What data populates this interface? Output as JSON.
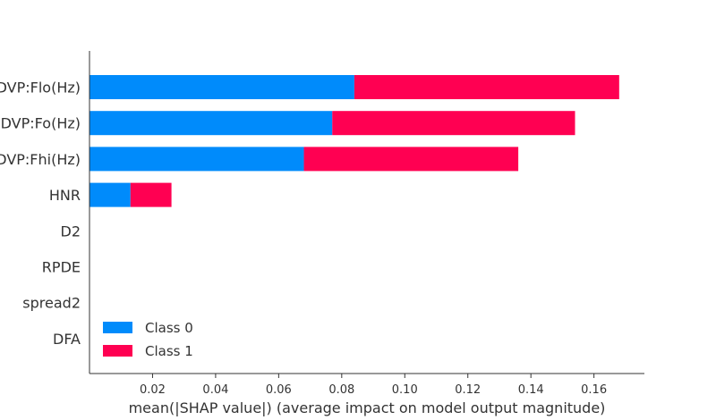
{
  "chart_data": {
    "type": "bar",
    "orientation": "horizontal",
    "stacked": true,
    "categories": [
      "MDVP:Flo(Hz)",
      "MDVP:Fo(Hz)",
      "MDVP:Fhi(Hz)",
      "HNR",
      "D2",
      "RPDE",
      "spread2",
      "DFA"
    ],
    "series": [
      {
        "name": "Class 0",
        "color": "#008bfb",
        "values": [
          0.084,
          0.077,
          0.068,
          0.013,
          0,
          0,
          0,
          0
        ]
      },
      {
        "name": "Class 1",
        "color": "#ff0052",
        "values": [
          0.084,
          0.077,
          0.068,
          0.013,
          0,
          0,
          0,
          0
        ]
      }
    ],
    "xlabel": "mean(|SHAP value|) (average impact on model output magnitude)",
    "ylabel": "",
    "xlim": [
      0,
      0.176
    ],
    "xticks": [
      "0.02",
      "0.04",
      "0.06",
      "0.08",
      "0.10",
      "0.12",
      "0.14",
      "0.16"
    ],
    "grid": false,
    "legend": "lower-left"
  }
}
